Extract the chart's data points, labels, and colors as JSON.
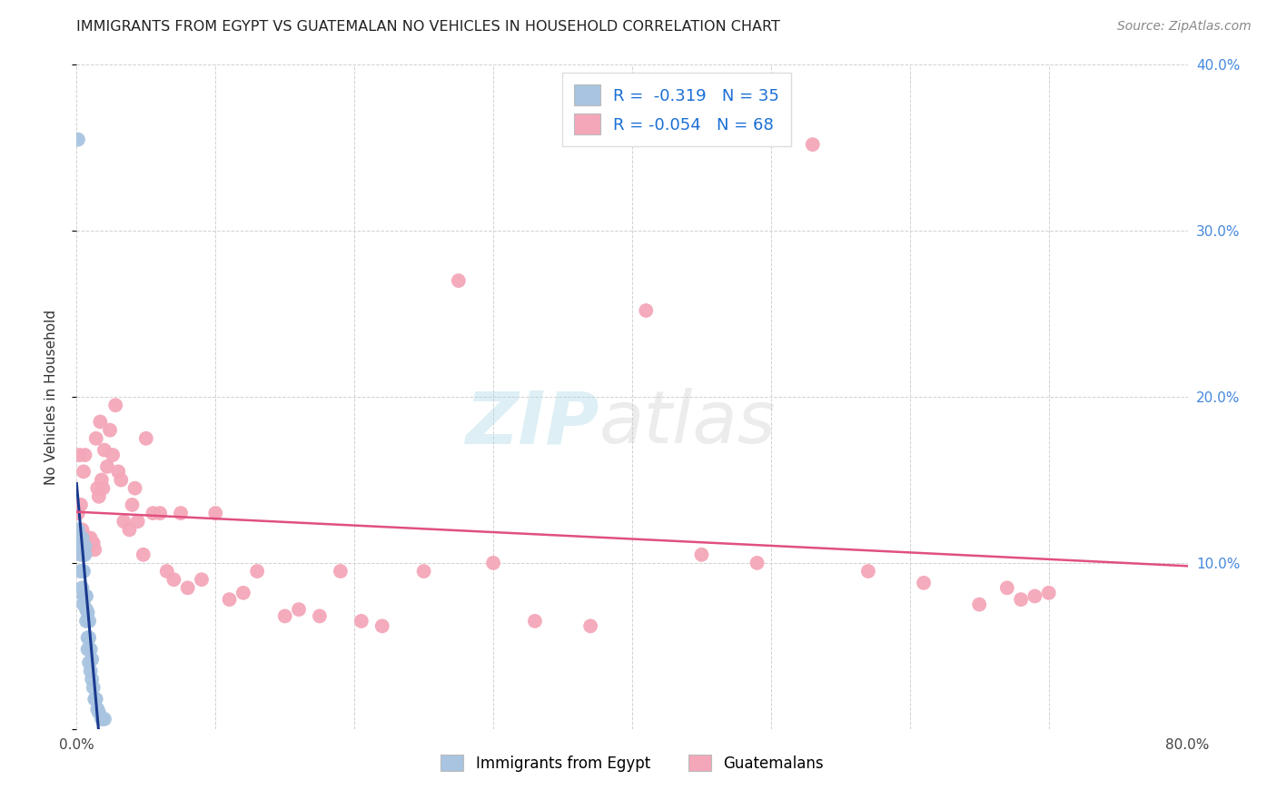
{
  "title": "IMMIGRANTS FROM EGYPT VS GUATEMALAN NO VEHICLES IN HOUSEHOLD CORRELATION CHART",
  "source": "Source: ZipAtlas.com",
  "ylabel": "No Vehicles in Household",
  "xlim": [
    0.0,
    0.8
  ],
  "ylim": [
    0.0,
    0.4
  ],
  "yticks": [
    0.0,
    0.1,
    0.2,
    0.3,
    0.4
  ],
  "xticks": [
    0.0,
    0.1,
    0.2,
    0.3,
    0.4,
    0.5,
    0.6,
    0.7,
    0.8
  ],
  "xtick_labels": [
    "0.0%",
    "",
    "",
    "",
    "",
    "",
    "",
    "",
    "80.0%"
  ],
  "right_ytick_labels": [
    "",
    "10.0%",
    "20.0%",
    "30.0%",
    "40.0%"
  ],
  "egypt_color": "#a8c4e0",
  "guatemala_color": "#f4a7b9",
  "egypt_line_color": "#1a3a8f",
  "guatemala_line_color": "#e05080",
  "legend_blue_color": "#1a6fd4",
  "legend_r1": "R =  -0.319",
  "legend_n1": "N = 35",
  "legend_r2": "R = -0.054",
  "legend_n2": "N = 68",
  "egypt_label": "Immigrants from Egypt",
  "guate_label": "Guatemalans",
  "egypt_x": [
    0.001,
    0.002,
    0.003,
    0.003,
    0.003,
    0.004,
    0.004,
    0.004,
    0.005,
    0.005,
    0.005,
    0.006,
    0.006,
    0.006,
    0.007,
    0.007,
    0.007,
    0.008,
    0.008,
    0.008,
    0.009,
    0.009,
    0.009,
    0.01,
    0.01,
    0.011,
    0.011,
    0.012,
    0.013,
    0.014,
    0.015,
    0.016,
    0.018,
    0.02,
    0.001
  ],
  "egypt_y": [
    0.12,
    0.115,
    0.11,
    0.105,
    0.095,
    0.115,
    0.095,
    0.085,
    0.095,
    0.08,
    0.075,
    0.11,
    0.105,
    0.08,
    0.08,
    0.072,
    0.065,
    0.07,
    0.055,
    0.048,
    0.065,
    0.055,
    0.04,
    0.048,
    0.035,
    0.042,
    0.03,
    0.025,
    0.018,
    0.018,
    0.012,
    0.01,
    0.006,
    0.006,
    0.355
  ],
  "guatemala_x": [
    0.002,
    0.003,
    0.004,
    0.005,
    0.005,
    0.006,
    0.006,
    0.007,
    0.008,
    0.009,
    0.01,
    0.011,
    0.012,
    0.013,
    0.014,
    0.015,
    0.016,
    0.017,
    0.018,
    0.019,
    0.02,
    0.022,
    0.024,
    0.026,
    0.028,
    0.03,
    0.032,
    0.034,
    0.038,
    0.04,
    0.042,
    0.044,
    0.048,
    0.05,
    0.055,
    0.06,
    0.065,
    0.07,
    0.075,
    0.08,
    0.09,
    0.1,
    0.11,
    0.12,
    0.13,
    0.15,
    0.16,
    0.175,
    0.19,
    0.205,
    0.22,
    0.25,
    0.275,
    0.3,
    0.33,
    0.37,
    0.41,
    0.45,
    0.49,
    0.53,
    0.57,
    0.61,
    0.65,
    0.67,
    0.68,
    0.69,
    0.7,
    0.001
  ],
  "guatemala_y": [
    0.165,
    0.135,
    0.12,
    0.155,
    0.105,
    0.165,
    0.11,
    0.108,
    0.115,
    0.11,
    0.115,
    0.112,
    0.112,
    0.108,
    0.175,
    0.145,
    0.14,
    0.185,
    0.15,
    0.145,
    0.168,
    0.158,
    0.18,
    0.165,
    0.195,
    0.155,
    0.15,
    0.125,
    0.12,
    0.135,
    0.145,
    0.125,
    0.105,
    0.175,
    0.13,
    0.13,
    0.095,
    0.09,
    0.13,
    0.085,
    0.09,
    0.13,
    0.078,
    0.082,
    0.095,
    0.068,
    0.072,
    0.068,
    0.095,
    0.065,
    0.062,
    0.095,
    0.27,
    0.1,
    0.065,
    0.062,
    0.252,
    0.105,
    0.1,
    0.352,
    0.095,
    0.088,
    0.075,
    0.085,
    0.078,
    0.08,
    0.082,
    0.13
  ]
}
